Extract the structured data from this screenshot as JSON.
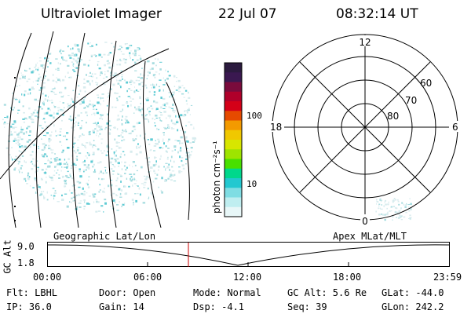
{
  "header": {
    "title": "Ultraviolet Imager",
    "date": "22 Jul 07",
    "time": "08:32:14 UT"
  },
  "geo_map": {
    "label": "Geographic Lat/Lon",
    "colors": {
      "speckle_light": "#d8ecee",
      "speckle_mid": "#a8dde0",
      "speckle_dark": "#5ecbd4"
    }
  },
  "colorbar": {
    "unit_label": "photon cm⁻²s⁻¹",
    "ticks": [
      "100",
      "10"
    ],
    "colors": [
      "#2b1a3e",
      "#3a1850",
      "#7a0b3c",
      "#b0002a",
      "#d40018",
      "#e64a00",
      "#f39a00",
      "#f0c800",
      "#d7e600",
      "#9ee400",
      "#48e000",
      "#00d88c",
      "#22c8d0",
      "#7fdde3",
      "#bfeef0",
      "#e8f7f8"
    ]
  },
  "polar_plot": {
    "label": "Apex MLat/MLT",
    "mlt_labels": {
      "top": "12",
      "bottom": "0",
      "left": "18",
      "right": "6"
    },
    "lat_labels": [
      "60",
      "70",
      "80"
    ]
  },
  "altitude_plot": {
    "axis_label": "GC Alt",
    "y_ticks": [
      "9.0",
      "1.8"
    ],
    "x_ticks": [
      "00:00",
      "06:00",
      "12:00",
      "18:00",
      "23:59"
    ],
    "marker_color": "#cc0000"
  },
  "info": {
    "flt": "Flt: LBHL",
    "ip": "IP: 36.0",
    "door": "Door: Open",
    "gain": "Gain: 14",
    "mode": "Mode: Normal",
    "dsp": "Dsp:   -4.1",
    "gcalt": "GC Alt: 5.6 Re",
    "seq": "Seq: 39",
    "glat": "GLat: -44.0",
    "glon": "GLon: 242.2"
  }
}
